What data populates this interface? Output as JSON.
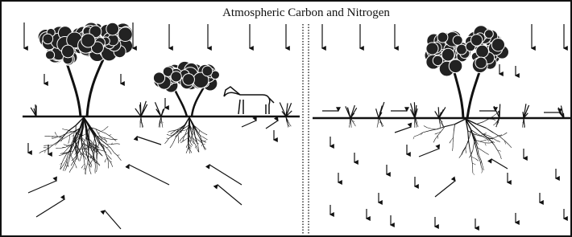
{
  "title": "Atmospheric Carbon and Nitrogen"
}
